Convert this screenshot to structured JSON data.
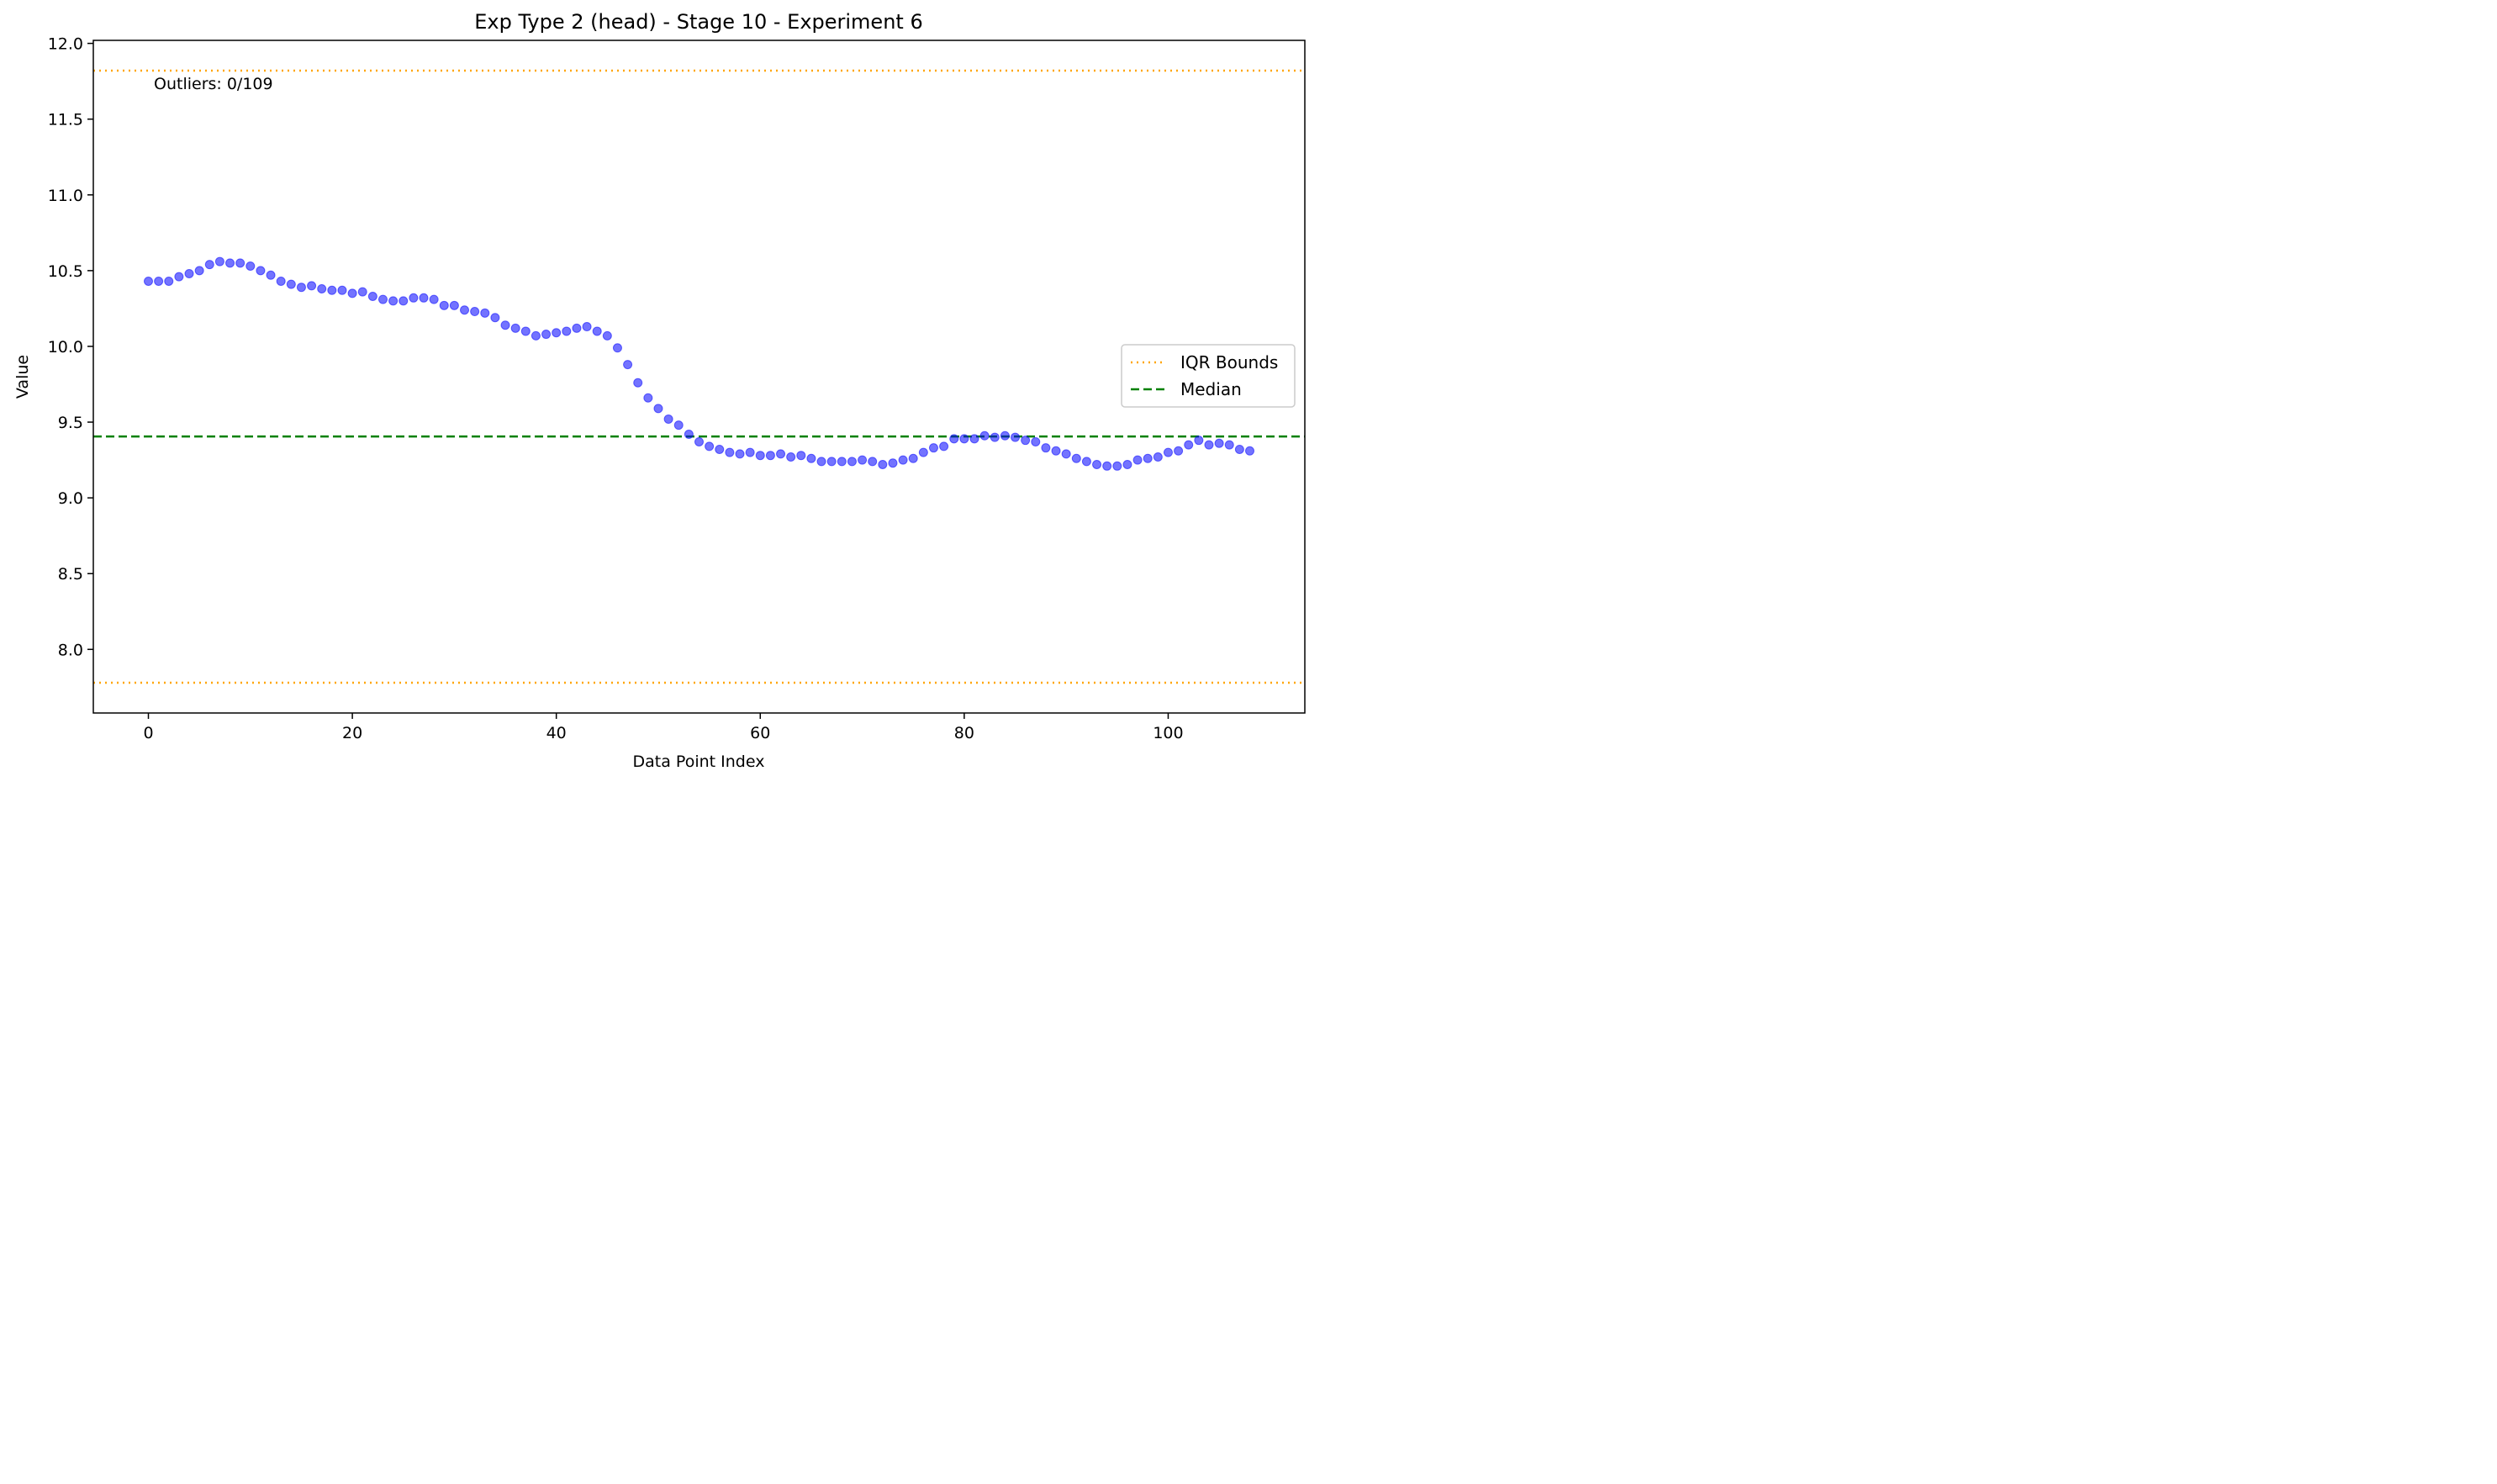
{
  "chart_data": {
    "type": "scatter",
    "title": "Exp Type 2 (head) - Stage 10 - Experiment 6",
    "xlabel": "Data Point Index",
    "ylabel": "Value",
    "xlim": [
      -5.4,
      113.4
    ],
    "ylim": [
      7.58,
      12.02
    ],
    "xticks": [
      0,
      20,
      40,
      60,
      80,
      100
    ],
    "yticks": [
      8.0,
      8.5,
      9.0,
      9.5,
      10.0,
      10.5,
      11.0,
      11.5,
      12.0
    ],
    "ytick_labels": [
      "8.0",
      "8.5",
      "9.0",
      "9.5",
      "10.0",
      "10.5",
      "11.0",
      "11.5",
      "12.0"
    ],
    "grid": false,
    "legend_position": "center-right",
    "series": [
      {
        "color": "#0000ff",
        "x": [
          0,
          1,
          2,
          3,
          4,
          5,
          6,
          7,
          8,
          9,
          10,
          11,
          12,
          13,
          14,
          15,
          16,
          17,
          18,
          19,
          20,
          21,
          22,
          23,
          24,
          25,
          26,
          27,
          28,
          29,
          30,
          31,
          32,
          33,
          34,
          35,
          36,
          37,
          38,
          39,
          40,
          41,
          42,
          43,
          44,
          45,
          46,
          47,
          48,
          49,
          50,
          51,
          52,
          53,
          54,
          55,
          56,
          57,
          58,
          59,
          60,
          61,
          62,
          63,
          64,
          65,
          66,
          67,
          68,
          69,
          70,
          71,
          72,
          73,
          74,
          75,
          76,
          77,
          78,
          79,
          80,
          81,
          82,
          83,
          84,
          85,
          86,
          87,
          88,
          89,
          90,
          91,
          92,
          93,
          94,
          95,
          96,
          97,
          98,
          99,
          100,
          101,
          102,
          103,
          104,
          105,
          106,
          107,
          108
        ],
        "y": [
          10.43,
          10.43,
          10.43,
          10.46,
          10.48,
          10.5,
          10.54,
          10.56,
          10.55,
          10.55,
          10.53,
          10.5,
          10.47,
          10.43,
          10.41,
          10.39,
          10.4,
          10.38,
          10.37,
          10.37,
          10.35,
          10.36,
          10.33,
          10.31,
          10.3,
          10.3,
          10.32,
          10.32,
          10.31,
          10.27,
          10.27,
          10.24,
          10.23,
          10.22,
          10.19,
          10.14,
          10.12,
          10.1,
          10.07,
          10.08,
          10.09,
          10.1,
          10.12,
          10.13,
          10.1,
          10.07,
          9.99,
          9.88,
          9.76,
          9.66,
          9.59,
          9.52,
          9.48,
          9.42,
          9.37,
          9.34,
          9.32,
          9.3,
          9.29,
          9.3,
          9.28,
          9.28,
          9.29,
          9.27,
          9.28,
          9.26,
          9.24,
          9.24,
          9.24,
          9.24,
          9.25,
          9.24,
          9.22,
          9.23,
          9.25,
          9.26,
          9.3,
          9.33,
          9.34,
          9.39,
          9.39,
          9.39,
          9.41,
          9.4,
          9.41,
          9.4,
          9.38,
          9.37,
          9.33,
          9.31,
          9.29,
          9.26,
          9.24,
          9.22,
          9.21,
          9.21,
          9.22,
          9.25,
          9.26,
          9.27,
          9.3,
          9.31,
          9.35,
          9.38,
          9.35,
          9.36,
          9.35,
          9.32,
          9.31
        ]
      }
    ],
    "reference_lines": [
      {
        "label": "IQR Bounds",
        "y": 11.82,
        "color": "#ffa500",
        "style": "dotted"
      },
      {
        "label": "",
        "y": 7.78,
        "color": "#ffa500",
        "style": "dotted"
      },
      {
        "label": "Median",
        "y": 9.405,
        "color": "#008000",
        "style": "dashed"
      }
    ],
    "legend": [
      {
        "label": "IQR Bounds",
        "color": "#ffa500",
        "style": "dotted"
      },
      {
        "label": "Median",
        "color": "#008000",
        "style": "dashed"
      }
    ],
    "annotation": "Outliers: 0/109"
  }
}
